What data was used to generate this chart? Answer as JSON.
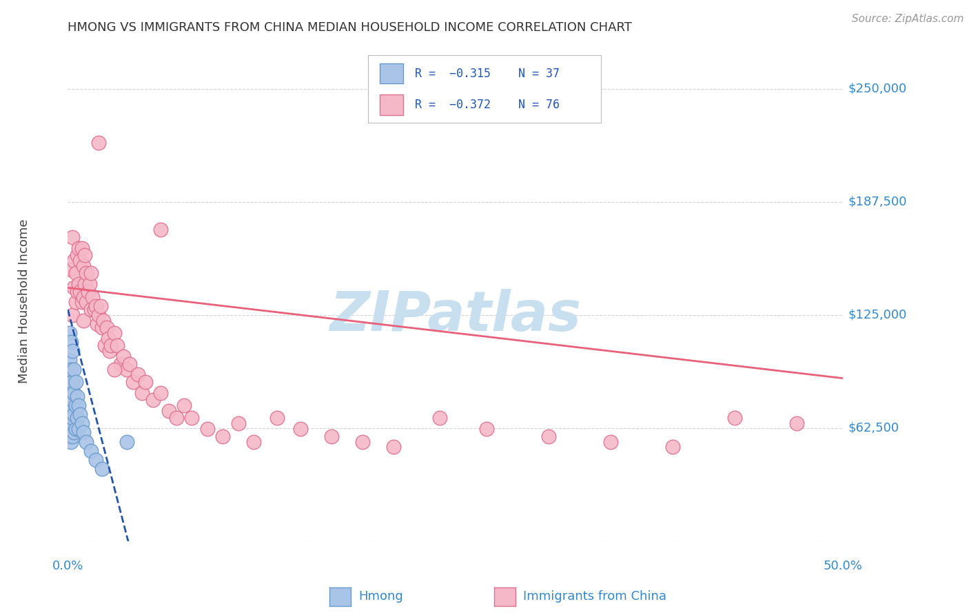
{
  "title": "HMONG VS IMMIGRANTS FROM CHINA MEDIAN HOUSEHOLD INCOME CORRELATION CHART",
  "source": "Source: ZipAtlas.com",
  "ylabel": "Median Household Income",
  "yticks": [
    0,
    62500,
    125000,
    187500,
    250000
  ],
  "ytick_labels": [
    "",
    "$62,500",
    "$125,000",
    "$187,500",
    "$250,000"
  ],
  "xlim": [
    0.0,
    0.5
  ],
  "ylim": [
    0,
    265000
  ],
  "background_color": "#ffffff",
  "grid_color": "#c8c8c8",
  "watermark_text": "ZIPatlas",
  "watermark_color": "#c8dff0",
  "hmong_color": "#aac4e8",
  "hmong_edge_color": "#6699cc",
  "hmong_line_color": "#2255aa",
  "china_color": "#f5b8c8",
  "china_edge_color": "#e07090",
  "china_line_color": "#e8607a",
  "hmong_x": [
    0.001,
    0.001,
    0.001,
    0.001,
    0.001,
    0.001,
    0.001,
    0.002,
    0.002,
    0.002,
    0.002,
    0.002,
    0.002,
    0.003,
    0.003,
    0.003,
    0.003,
    0.003,
    0.004,
    0.004,
    0.004,
    0.004,
    0.005,
    0.005,
    0.005,
    0.006,
    0.006,
    0.007,
    0.007,
    0.008,
    0.009,
    0.01,
    0.012,
    0.015,
    0.018,
    0.022,
    0.038
  ],
  "hmong_y": [
    115000,
    100000,
    90000,
    80000,
    72000,
    65000,
    58000,
    110000,
    95000,
    82000,
    72000,
    62000,
    55000,
    105000,
    88000,
    78000,
    68000,
    58000,
    95000,
    82000,
    70000,
    60000,
    88000,
    75000,
    62000,
    80000,
    68000,
    75000,
    62000,
    70000,
    65000,
    60000,
    55000,
    50000,
    45000,
    40000,
    55000
  ],
  "china_x": [
    0.002,
    0.003,
    0.003,
    0.004,
    0.004,
    0.005,
    0.005,
    0.006,
    0.006,
    0.007,
    0.007,
    0.008,
    0.008,
    0.009,
    0.009,
    0.01,
    0.01,
    0.01,
    0.011,
    0.011,
    0.012,
    0.012,
    0.013,
    0.014,
    0.015,
    0.015,
    0.016,
    0.017,
    0.018,
    0.019,
    0.02,
    0.021,
    0.022,
    0.023,
    0.024,
    0.025,
    0.026,
    0.027,
    0.028,
    0.03,
    0.032,
    0.034,
    0.036,
    0.038,
    0.04,
    0.042,
    0.045,
    0.048,
    0.05,
    0.055,
    0.06,
    0.065,
    0.07,
    0.075,
    0.08,
    0.09,
    0.1,
    0.11,
    0.12,
    0.135,
    0.15,
    0.17,
    0.19,
    0.21,
    0.24,
    0.27,
    0.31,
    0.35,
    0.39,
    0.43,
    0.47,
    0.03,
    0.02,
    0.06
  ],
  "china_y": [
    150000,
    168000,
    125000,
    155000,
    140000,
    148000,
    132000,
    158000,
    138000,
    162000,
    142000,
    155000,
    138000,
    162000,
    132000,
    152000,
    135000,
    122000,
    158000,
    142000,
    148000,
    132000,
    138000,
    142000,
    148000,
    128000,
    135000,
    128000,
    130000,
    120000,
    125000,
    130000,
    118000,
    122000,
    108000,
    118000,
    112000,
    105000,
    108000,
    115000,
    108000,
    98000,
    102000,
    95000,
    98000,
    88000,
    92000,
    82000,
    88000,
    78000,
    82000,
    72000,
    68000,
    75000,
    68000,
    62000,
    58000,
    65000,
    55000,
    68000,
    62000,
    58000,
    55000,
    52000,
    68000,
    62000,
    58000,
    55000,
    52000,
    68000,
    65000,
    95000,
    220000,
    172000
  ]
}
